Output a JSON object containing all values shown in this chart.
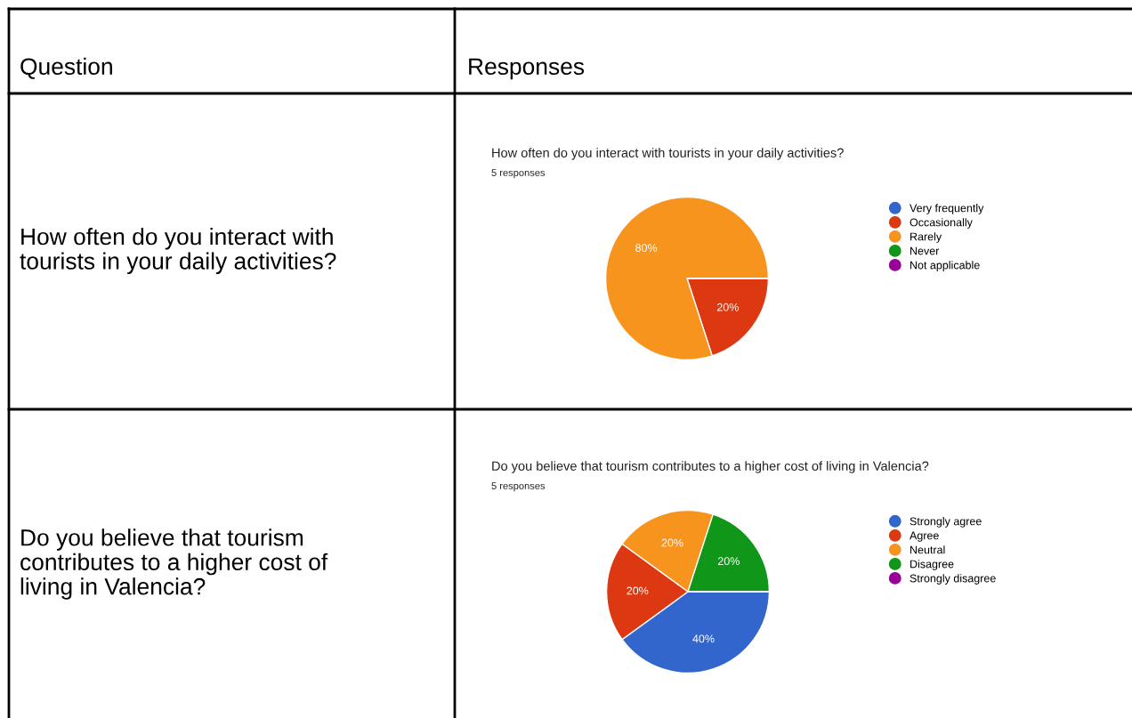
{
  "chart_data": [
    {
      "type": "pie",
      "title": "How often do you interact with tourists in your daily activities?",
      "subtitle": "5 responses",
      "categories": [
        "Very frequently",
        "Occasionally",
        "Rarely",
        "Never",
        "Not applicable"
      ],
      "values": [
        0,
        20,
        80,
        0,
        0
      ],
      "value_labels": [
        null,
        "20%",
        "80%",
        null,
        null
      ],
      "colors": [
        "#3366cc",
        "#dc3912",
        "#f7941d",
        "#109618",
        "#990099"
      ],
      "legend": "right",
      "annotations": [
        "Question",
        "Responses",
        "How often do you interact with\ntourists in your daily activities?"
      ]
    },
    {
      "type": "pie",
      "title": "Do you believe that tourism contributes to a higher cost of living in Valencia?",
      "subtitle": "5 responses",
      "categories": [
        "Strongly agree",
        "Agree",
        "Neutral",
        "Disagree",
        "Strongly disagree"
      ],
      "values": [
        40,
        20,
        20,
        20,
        0
      ],
      "value_labels": [
        "40%",
        "20%",
        "20%",
        "20%",
        null
      ],
      "colors": [
        "#3366cc",
        "#dc3912",
        "#f7941d",
        "#109618",
        "#990099"
      ],
      "legend": "right",
      "annotations": [
        "Do you believe that tourism\ncontributes to a higher cost of\nliving in Valencia?"
      ]
    }
  ]
}
